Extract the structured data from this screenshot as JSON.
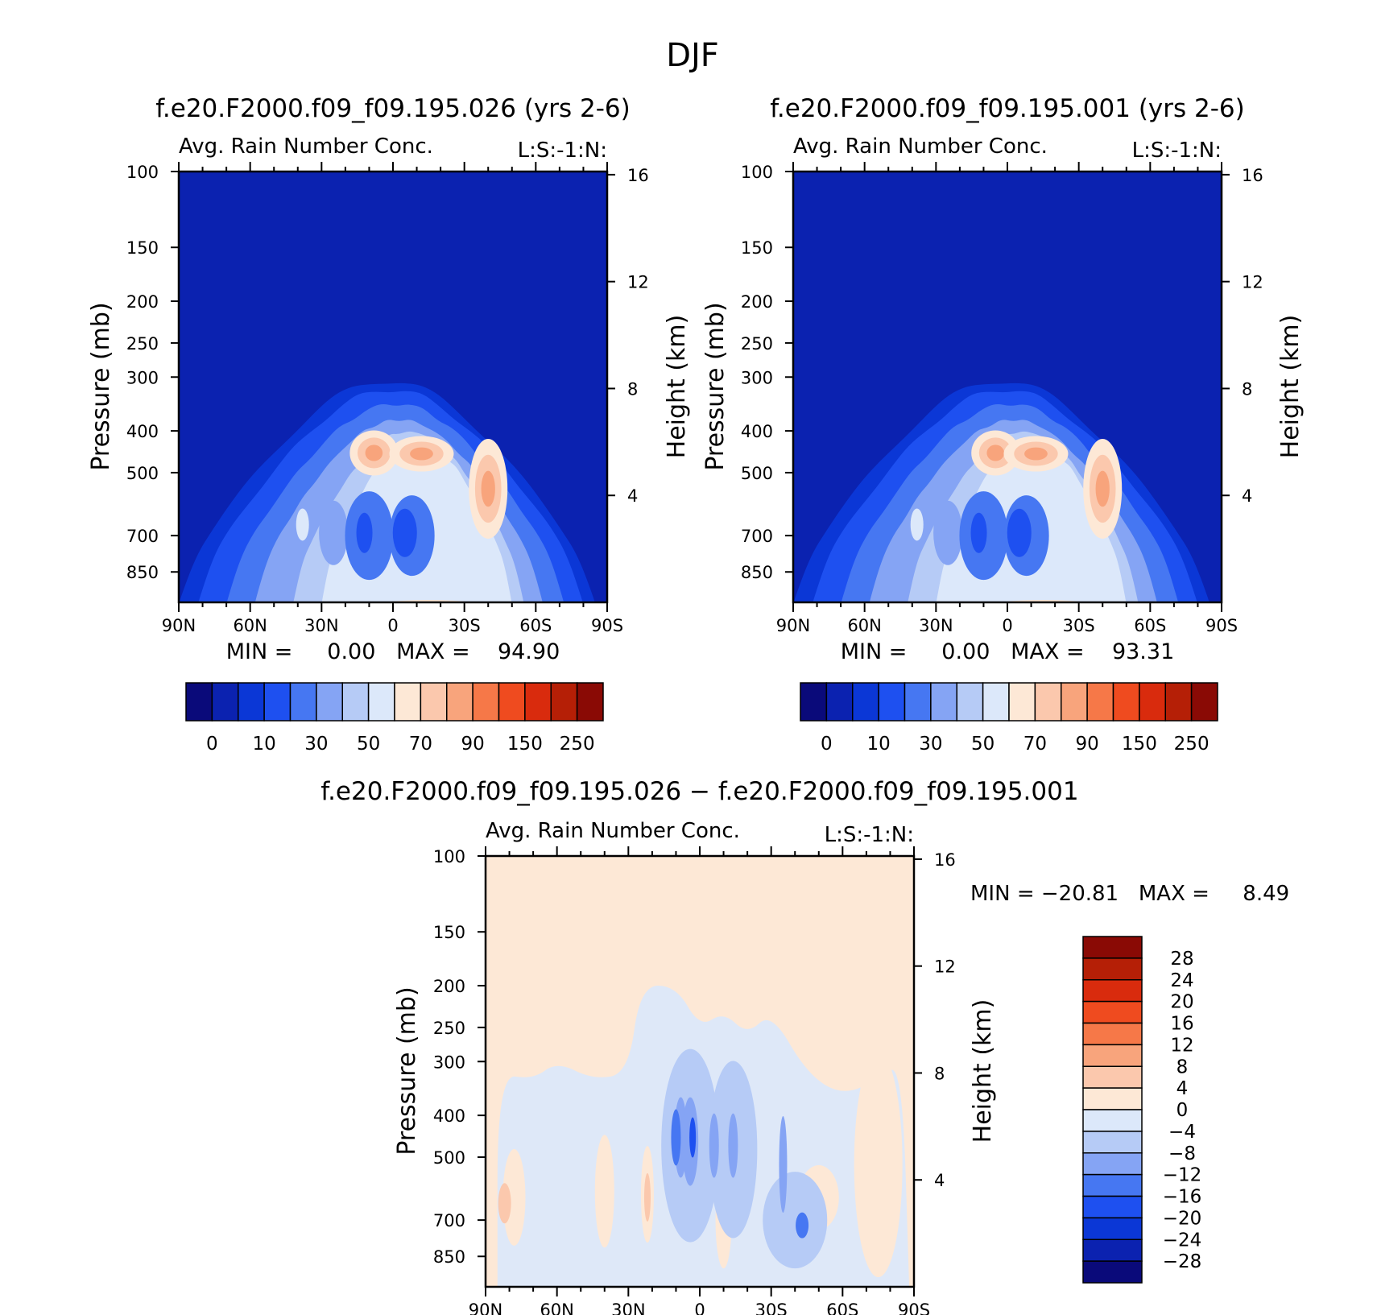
{
  "figure_title": "DJF",
  "colors": {
    "upper_palette": [
      "#0a0a7a",
      "#0b22b0",
      "#0b37d6",
      "#1e50f0",
      "#4677f2",
      "#85a4f4",
      "#b6cbf6",
      "#dce8fa",
      "#fde8d6",
      "#fbc8ad",
      "#f8a47c",
      "#f67848",
      "#ef4b1f",
      "#d92b0d",
      "#b51f06",
      "#8a0a05"
    ],
    "diff_palette": [
      "#0a0a7a",
      "#0b22b0",
      "#0b37d6",
      "#1e50f0",
      "#4677f2",
      "#85a4f4",
      "#b6cbf6",
      "#dce8fa",
      "#fde8d6",
      "#fbc8ad",
      "#f8a47c",
      "#f67848",
      "#ef4b1f",
      "#d92b0d",
      "#b51f06",
      "#8a0a05"
    ]
  },
  "chart_data": [
    {
      "id": "left",
      "type": "contour",
      "case_title": "f.e20.F2000.f09_f09.195.026 (yrs 2-6)",
      "subtitle": "Avg. Rain Number Conc.",
      "units_label": "L:S:-1:N:",
      "ylabel": "Pressure (mb)",
      "ylabel_right": "Height (km)",
      "yticks": [
        "100",
        "150",
        "200",
        "250",
        "300",
        "400",
        "500",
        "700",
        "850"
      ],
      "ytick_values": [
        100,
        150,
        200,
        250,
        300,
        400,
        500,
        700,
        850
      ],
      "yticks_right": [
        "16",
        "12",
        "8",
        "4"
      ],
      "ytick_right_values": [
        16,
        12,
        8,
        4
      ],
      "xticks": [
        "90N",
        "60N",
        "30N",
        "0",
        "30S",
        "60S",
        "90S"
      ],
      "xtick_values": [
        90,
        60,
        30,
        0,
        -30,
        -60,
        -90
      ],
      "ylim": [
        100,
        1000
      ],
      "xlim": [
        90,
        -90
      ],
      "stats_label": "MIN =     0.00   MAX =    94.90",
      "min": 0.0,
      "max": 94.9,
      "contour_levels": [
        0,
        5,
        10,
        20,
        30,
        40,
        50,
        60,
        70,
        80,
        90,
        100,
        150,
        200,
        250
      ],
      "colorbar_labels": [
        "0",
        "10",
        "30",
        "50",
        "70",
        "90",
        "150",
        "250"
      ],
      "features": [
        {
          "name": "rain-envelope",
          "lat": 0,
          "p_top": 300,
          "level": 10
        },
        {
          "name": "max-north-of-equator",
          "lat": 8,
          "p": 450,
          "value": 90
        },
        {
          "name": "max-south-of-equator",
          "lat": -12,
          "p": 450,
          "value": 85
        },
        {
          "name": "max-southern-midlat",
          "lat": -40,
          "p": 540,
          "value": 94.9
        }
      ]
    },
    {
      "id": "right",
      "type": "contour",
      "case_title": "f.e20.F2000.f09_f09.195.001 (yrs 2-6)",
      "subtitle": "Avg. Rain Number Conc.",
      "units_label": "L:S:-1:N:",
      "ylabel": "Pressure (mb)",
      "ylabel_right": "Height (km)",
      "yticks": [
        "100",
        "150",
        "200",
        "250",
        "300",
        "400",
        "500",
        "700",
        "850"
      ],
      "ytick_values": [
        100,
        150,
        200,
        250,
        300,
        400,
        500,
        700,
        850
      ],
      "yticks_right": [
        "16",
        "12",
        "8",
        "4"
      ],
      "ytick_right_values": [
        16,
        12,
        8,
        4
      ],
      "xticks": [
        "90N",
        "60N",
        "30N",
        "0",
        "30S",
        "60S",
        "90S"
      ],
      "xtick_values": [
        90,
        60,
        30,
        0,
        -30,
        -60,
        -90
      ],
      "ylim": [
        100,
        1000
      ],
      "xlim": [
        90,
        -90
      ],
      "stats_label": "MIN =     0.00   MAX =    93.31",
      "min": 0.0,
      "max": 93.31,
      "contour_levels": [
        0,
        5,
        10,
        20,
        30,
        40,
        50,
        60,
        70,
        80,
        90,
        100,
        150,
        200,
        250
      ],
      "colorbar_labels": [
        "0",
        "10",
        "30",
        "50",
        "70",
        "90",
        "150",
        "250"
      ],
      "features": [
        {
          "name": "rain-envelope",
          "lat": 0,
          "p_top": 295,
          "level": 10
        },
        {
          "name": "max-north-of-equator",
          "lat": 6,
          "p": 450,
          "value": 93.31
        },
        {
          "name": "max-south-of-equator",
          "lat": -12,
          "p": 450,
          "value": 90
        },
        {
          "name": "max-southern-midlat",
          "lat": -40,
          "p": 540,
          "value": 92
        }
      ]
    },
    {
      "id": "diff",
      "type": "contour",
      "case_title": "f.e20.F2000.f09_f09.195.026 − f.e20.F2000.f09_f09.195.001",
      "subtitle": "Avg. Rain Number Conc.",
      "units_label": "L:S:-1:N:",
      "ylabel": "Pressure (mb)",
      "ylabel_right": "Height (km)",
      "yticks": [
        "100",
        "150",
        "200",
        "250",
        "300",
        "400",
        "500",
        "700",
        "850"
      ],
      "ytick_values": [
        100,
        150,
        200,
        250,
        300,
        400,
        500,
        700,
        850
      ],
      "yticks_right": [
        "16",
        "12",
        "8",
        "4"
      ],
      "ytick_right_values": [
        16,
        12,
        8,
        4
      ],
      "xticks": [
        "90N",
        "60N",
        "30N",
        "0",
        "30S",
        "60S",
        "90S"
      ],
      "xtick_values": [
        90,
        60,
        30,
        0,
        -30,
        -60,
        -90
      ],
      "ylim": [
        100,
        1000
      ],
      "xlim": [
        90,
        -90
      ],
      "stats_label": "MIN = −20.81   MAX =     8.49",
      "min": -20.81,
      "max": 8.49,
      "contour_levels": [
        -28,
        -24,
        -20,
        -16,
        -12,
        -8,
        -4,
        0,
        4,
        8,
        12,
        16,
        20,
        24,
        28
      ],
      "colorbar_labels": [
        "28",
        "24",
        "20",
        "16",
        "12",
        "8",
        "4",
        "0",
        "−4",
        "−8",
        "−12",
        "−16",
        "−20",
        "−24",
        "−28"
      ],
      "features": [
        {
          "name": "min-near-equator",
          "lat": 10,
          "p": 450,
          "value": -20.81
        },
        {
          "name": "positive-bg",
          "lat": 0,
          "p": 150,
          "value": 2
        },
        {
          "name": "max-northern",
          "lat": 85,
          "p": 620,
          "value": 8.49
        }
      ]
    }
  ]
}
